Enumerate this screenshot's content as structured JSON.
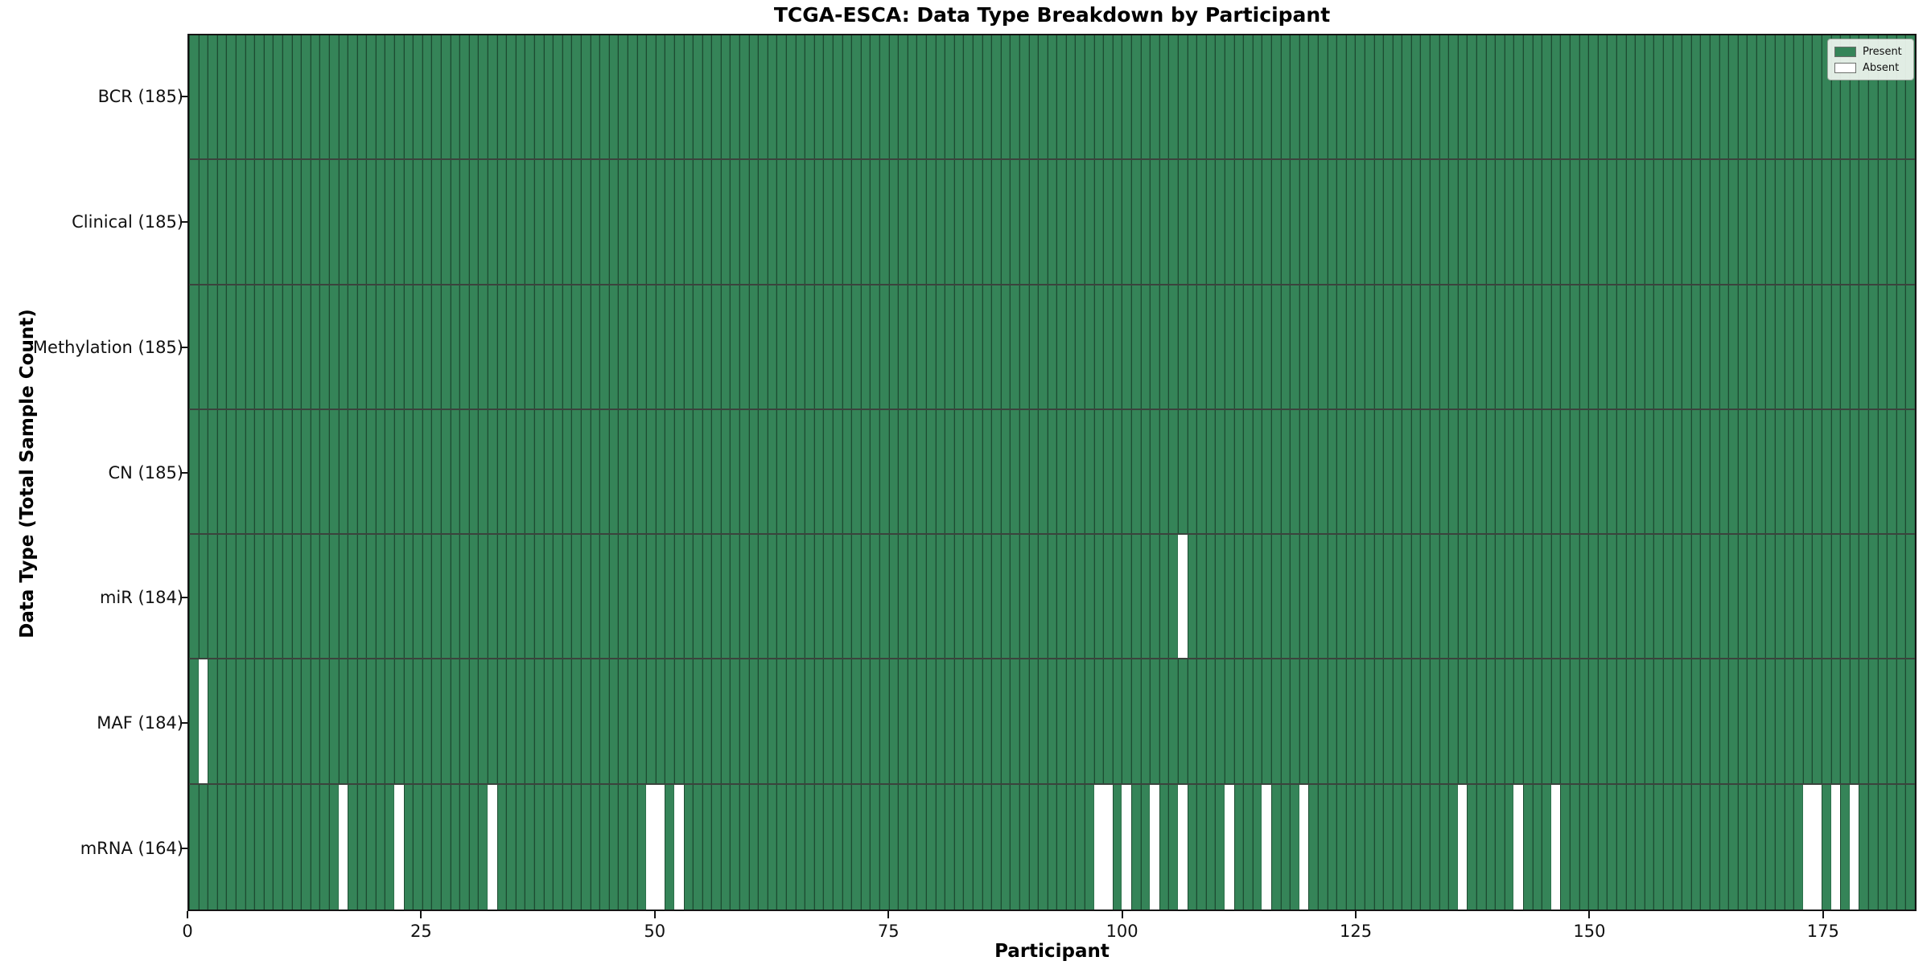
{
  "title": "TCGA-ESCA: Data Type Breakdown by Participant",
  "x_axis": {
    "label": "Participant",
    "ticks": [
      0,
      25,
      50,
      75,
      100,
      125,
      150,
      175
    ],
    "min": 0,
    "max": 185
  },
  "y_axis": {
    "label": "Data Type (Total Sample Count)"
  },
  "legend": {
    "position": "upper right",
    "entries": [
      {
        "label": "Present",
        "color": "#358458"
      },
      {
        "label": "Absent",
        "color": "#ffffff"
      }
    ]
  },
  "chart_data": {
    "type": "heatmap",
    "xlabel": "Participant",
    "ylabel": "Data Type (Total Sample Count)",
    "n_participants": 185,
    "present_color": "#358458",
    "absent_color": "#ffffff",
    "grid": "cell-borders-on",
    "rows": [
      {
        "label": "BCR (185)",
        "total": 185,
        "absent_participants": []
      },
      {
        "label": "Clinical (185)",
        "total": 185,
        "absent_participants": []
      },
      {
        "label": "Methylation (185)",
        "total": 185,
        "absent_participants": []
      },
      {
        "label": "CN (185)",
        "total": 185,
        "absent_participants": []
      },
      {
        "label": "miR (184)",
        "total": 184,
        "absent_participants": [
          106
        ]
      },
      {
        "label": "MAF (184)",
        "total": 184,
        "absent_participants": [
          1
        ]
      },
      {
        "label": "mRNA (164)",
        "total": 164,
        "absent_participants": [
          16,
          22,
          32,
          49,
          50,
          52,
          97,
          98,
          100,
          103,
          106,
          111,
          115,
          119,
          136,
          142,
          146,
          173,
          174,
          176,
          178
        ]
      }
    ]
  }
}
